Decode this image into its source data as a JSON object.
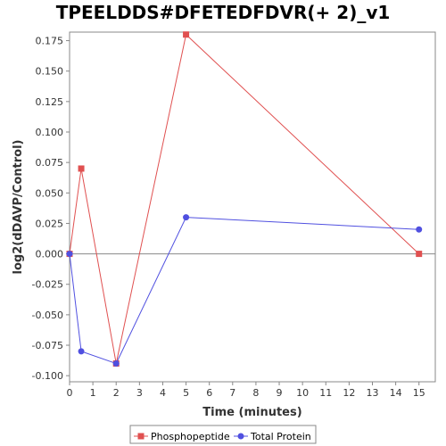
{
  "chart_data": {
    "type": "line",
    "title": "TPEELDDS#DFETEDFDVR(+ 2)_v1",
    "xlabel": "Time (minutes)",
    "ylabel": "log2(dDAVP/Control)",
    "xlim": [
      0,
      15.7
    ],
    "ylim": [
      -0.105,
      0.182
    ],
    "xticks": [
      0,
      1,
      2,
      3,
      4,
      5,
      6,
      7,
      8,
      9,
      10,
      11,
      12,
      13,
      14,
      15
    ],
    "yticks": [
      -0.1,
      -0.075,
      -0.05,
      -0.025,
      0.0,
      0.025,
      0.05,
      0.075,
      0.1,
      0.125,
      0.15,
      0.175
    ],
    "ytick_labels": [
      "-0.100",
      "-0.075",
      "-0.050",
      "-0.025",
      "0.000",
      "0.025",
      "0.050",
      "0.075",
      "0.100",
      "0.125",
      "0.150",
      "0.175"
    ],
    "legend_position": "bottom-center",
    "series": [
      {
        "name": "Phosphopeptide",
        "color": "#e05050",
        "marker": "square",
        "x": [
          0,
          0.5,
          2,
          5,
          15
        ],
        "y": [
          0.0,
          0.07,
          -0.09,
          0.18,
          0.0
        ]
      },
      {
        "name": "Total Protein",
        "color": "#5050e0",
        "marker": "circle",
        "x": [
          0,
          0.5,
          2,
          5,
          15
        ],
        "y": [
          0.0,
          -0.08,
          -0.09,
          0.03,
          0.02
        ]
      }
    ]
  }
}
